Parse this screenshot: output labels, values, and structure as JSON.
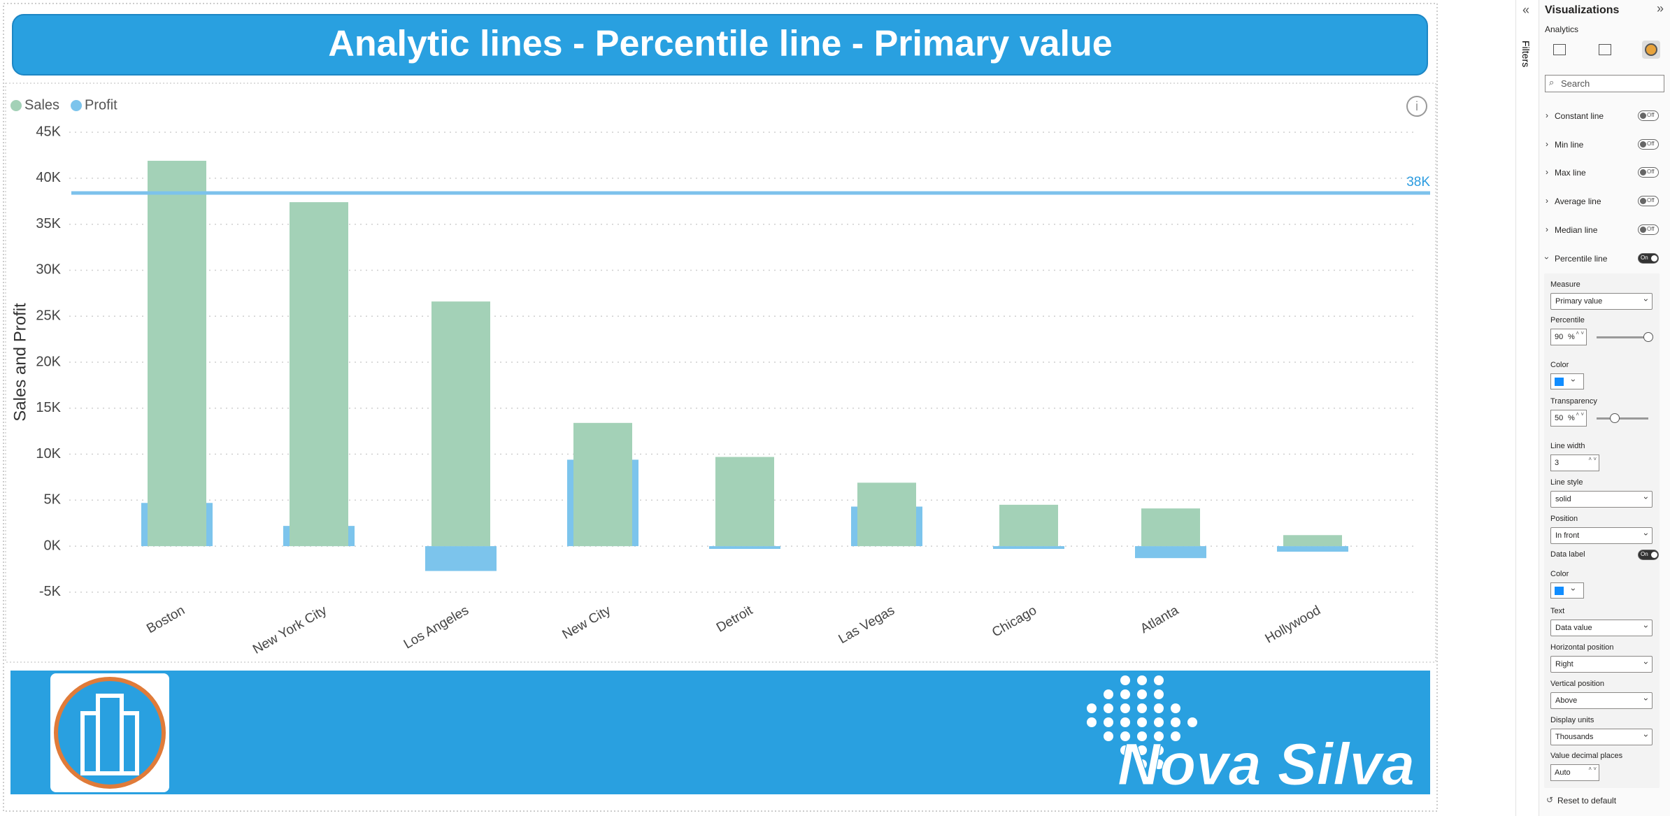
{
  "chart_data": {
    "type": "bar",
    "title": "Analytic lines - Percentile line - Primary value",
    "y_label": "Sales and Profit",
    "categories": [
      "Boston",
      "New York City",
      "Los Angeles",
      "New City",
      "Detroit",
      "Las Vegas",
      "Chicago",
      "Atlanta",
      "Hollywood"
    ],
    "series": [
      {
        "name": "Sales",
        "color": "#a3d1b7",
        "values": [
          41900,
          37400,
          26600,
          13400,
          9700,
          6900,
          4500,
          4100,
          1200
        ]
      },
      {
        "name": "Profit",
        "color": "#7cc4ec",
        "values": [
          4700,
          2200,
          -2700,
          9400,
          -300,
          4300,
          -300,
          -1300,
          -600
        ]
      }
    ],
    "ylim": [
      -6000,
      46000
    ],
    "yticks": [
      {
        "value": -5000,
        "label": "-5K"
      },
      {
        "value": 0,
        "label": "0K"
      },
      {
        "value": 5000,
        "label": "5K"
      },
      {
        "value": 10000,
        "label": "10K"
      },
      {
        "value": 15000,
        "label": "15K"
      },
      {
        "value": 20000,
        "label": "20K"
      },
      {
        "value": 25000,
        "label": "25K"
      },
      {
        "value": 30000,
        "label": "30K"
      },
      {
        "value": 35000,
        "label": "35K"
      },
      {
        "value": 40000,
        "label": "40K"
      },
      {
        "value": 45000,
        "label": "45K"
      }
    ],
    "grid": true,
    "legend": "top-left",
    "percentile_line": {
      "value": 38400,
      "label": "38K",
      "color": "#7cc2ec"
    }
  },
  "footer": {
    "brand": "Nova Silva"
  },
  "pane": {
    "title": "Visualizations",
    "tab": "Analytics",
    "filters": "Filters",
    "search": "Search",
    "lines": [
      {
        "label": "Constant line",
        "state": "Off"
      },
      {
        "label": "Min line",
        "state": "Off"
      },
      {
        "label": "Max line",
        "state": "Off"
      },
      {
        "label": "Average line",
        "state": "Off"
      },
      {
        "label": "Median line",
        "state": "Off"
      },
      {
        "label": "Percentile line",
        "state": "On"
      }
    ],
    "settings": [
      {
        "label": "Measure",
        "value": "Primary value"
      },
      {
        "label": "Percentile",
        "value": 90,
        "unit": "%"
      },
      {
        "label": "Color"
      },
      {
        "label": "Transparency",
        "value": 50,
        "unit": "%"
      },
      {
        "label": "Line width",
        "value": 3
      },
      {
        "label": "Line style",
        "value": "solid"
      },
      {
        "label": "Position",
        "value": "In front"
      },
      {
        "label": "Data label",
        "state": "On"
      },
      {
        "label": "Color"
      },
      {
        "label": "Text",
        "value": "Data value"
      },
      {
        "label": "Horizontal position",
        "value": "Right"
      },
      {
        "label": "Vertical position",
        "value": "Above"
      },
      {
        "label": "Display units",
        "value": "Thousands"
      },
      {
        "label": "Value decimal places",
        "value": "Auto"
      }
    ],
    "reset": "Reset to default"
  }
}
